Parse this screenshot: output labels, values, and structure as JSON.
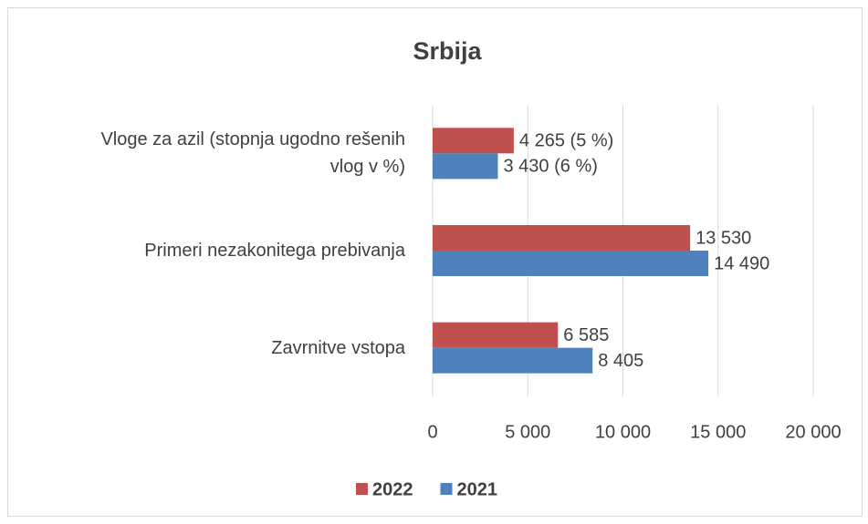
{
  "chart_data": {
    "type": "hbar",
    "title": "Srbija",
    "categories": [
      "Vloge za azil (stopnja ugodno rešenih vlog v %)",
      "Primeri nezakonitega prebivanja",
      "Zavrnitve vstopa"
    ],
    "series": [
      {
        "name": "2022",
        "color": "#c0504d",
        "values": [
          4265,
          13530,
          6585
        ],
        "value_labels": [
          "4 265 (5 %)",
          "13 530",
          "6 585"
        ]
      },
      {
        "name": "2021",
        "color": "#4f81bd",
        "values": [
          3430,
          14490,
          8405
        ],
        "value_labels": [
          "3 430 (6 %)",
          "14 490",
          "8 405"
        ]
      }
    ],
    "xlim": [
      0,
      20000
    ],
    "xticks": [
      0,
      {
        "value": 5000,
        "label": "5 000"
      },
      {
        "value": 10000,
        "label": "10 000"
      },
      {
        "value": 15000,
        "label": "15 000"
      },
      {
        "value": 20000,
        "label": "20 000"
      }
    ],
    "grid": true,
    "legend": "bottom"
  }
}
